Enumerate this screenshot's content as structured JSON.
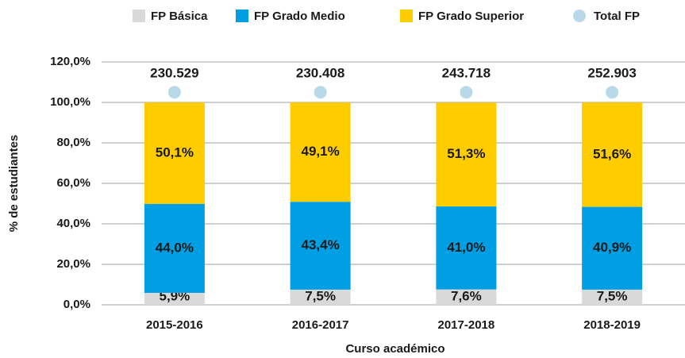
{
  "chart_data": {
    "type": "stacked_bar",
    "x_label": "Curso académico",
    "y_label": "% de estudiantes",
    "categories": [
      "2015-2016",
      "2016-2017",
      "2017-2018",
      "2018-2019"
    ],
    "series": [
      {
        "name": "FP Básica",
        "color": "#d9d9d9",
        "values": [
          5.9,
          7.5,
          7.6,
          7.5
        ],
        "value_labels": [
          "5,9%",
          "7,5%",
          "7,6%",
          "7,5%"
        ]
      },
      {
        "name": "FP Grado Medio",
        "color": "#009fe3",
        "values": [
          44.0,
          43.4,
          41.0,
          40.9
        ],
        "value_labels": [
          "44,0%",
          "43,4%",
          "41,0%",
          "40,9%"
        ]
      },
      {
        "name": "FP Grado Superior",
        "color": "#ffcc00",
        "values": [
          50.1,
          49.1,
          51.3,
          51.6
        ],
        "value_labels": [
          "50,1%",
          "49,1%",
          "51,3%",
          "51,6%"
        ]
      }
    ],
    "total": {
      "name": "Total FP",
      "color": "#b9d9ea",
      "values": [
        230529,
        230408,
        243718,
        252903
      ],
      "value_labels": [
        "230.529",
        "230.408",
        "243.718",
        "252.903"
      ]
    },
    "ylim": [
      0,
      120
    ],
    "yticks": [
      {
        "value": 0,
        "label": "0,0%"
      },
      {
        "value": 20,
        "label": "20,0%"
      },
      {
        "value": 40,
        "label": "40,0%"
      },
      {
        "value": 60,
        "label": "60,0%"
      },
      {
        "value": 80,
        "label": "80,0%"
      },
      {
        "value": 100,
        "label": "100,0%"
      },
      {
        "value": 120,
        "label": "120,0%"
      }
    ],
    "grid": true
  }
}
